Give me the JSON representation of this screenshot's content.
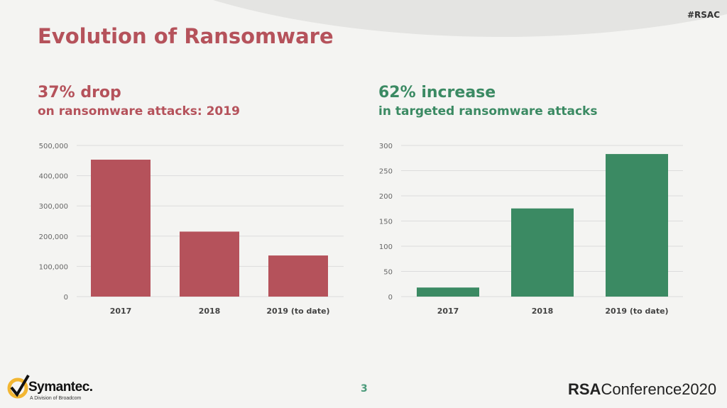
{
  "hashtag": "#RSAC",
  "title": "Evolution of Ransomware",
  "left": {
    "headline": "37% drop",
    "subhead": "on ransomware attacks: 2019"
  },
  "right": {
    "headline": "62% increase",
    "subhead": "in targeted ransomware attacks"
  },
  "footer": {
    "page": "3",
    "symantec": "Symantec.",
    "symantec_sub": "A Division of Broadcom",
    "rsa_bold": "RSA",
    "rsa_rest": "Conference2020"
  },
  "colors": {
    "red": "#b5525b",
    "green": "#3b8a63"
  },
  "chart_data": [
    {
      "type": "bar",
      "title": "",
      "categories": [
        "2017",
        "2018",
        "2019 (to date)"
      ],
      "values": [
        453000,
        215000,
        136000
      ],
      "ylim": [
        0,
        500000
      ],
      "yticks": [
        "0",
        "100,000",
        "200,000",
        "300,000",
        "400,000",
        "500,000"
      ],
      "grid": true,
      "color": "#b5525b"
    },
    {
      "type": "bar",
      "title": "",
      "categories": [
        "2017",
        "2018",
        "2019 (to date)"
      ],
      "values": [
        18,
        175,
        283
      ],
      "ylim": [
        0,
        300
      ],
      "yticks": [
        "0",
        "50",
        "100",
        "150",
        "200",
        "250",
        "300"
      ],
      "grid": true,
      "color": "#3b8a63"
    }
  ]
}
